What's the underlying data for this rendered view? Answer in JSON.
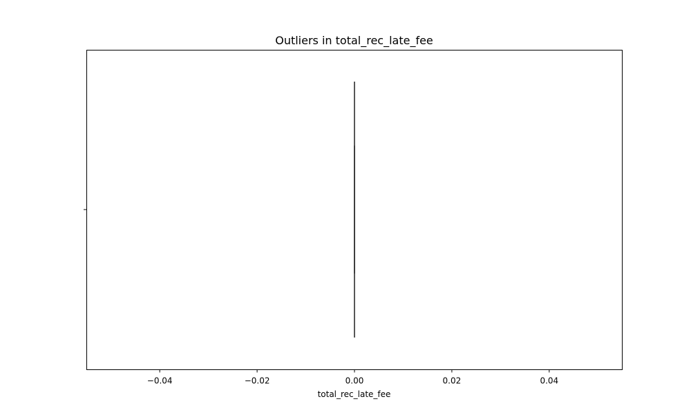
{
  "chart_data": {
    "type": "box",
    "title": "Outliers in total_rec_late_fee",
    "xlabel": "total_rec_late_fee",
    "ylabel": "",
    "orientation": "horizontal",
    "xlim": [
      -0.055,
      0.055
    ],
    "x_ticks": [
      -0.04,
      -0.02,
      0.0,
      0.02,
      0.04
    ],
    "x_tick_labels": [
      "−0.04",
      "−0.02",
      "0.00",
      "0.02",
      "0.04"
    ],
    "grid": false,
    "series": [
      {
        "whisker_low": 0.0,
        "q1": 0.0,
        "median": 0.0,
        "q3": 0.0,
        "whisker_high": 0.0,
        "outliers": []
      }
    ],
    "colors": {
      "box_line": "#3f3f3f",
      "box_fill": "#4c72b0",
      "axes": "#000000"
    }
  }
}
